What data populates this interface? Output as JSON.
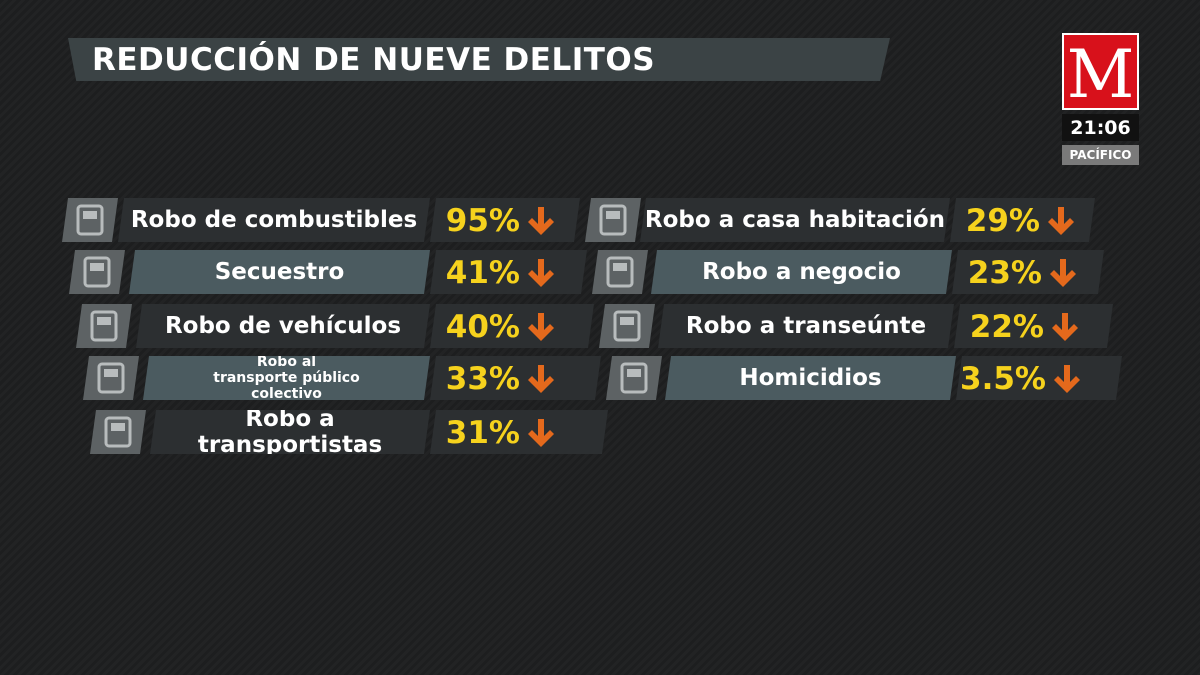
{
  "header": {
    "title": "REDUCCIÓN DE NUEVE DELITOS"
  },
  "logo": {
    "letter": "M",
    "time": "21:06",
    "zone": "PACÍFICO"
  },
  "items": [
    {
      "label": "Robo de combustibles",
      "value": "95%"
    },
    {
      "label": "Secuestro",
      "value": "41%"
    },
    {
      "label": "Robo de vehículos",
      "value": "40%"
    },
    {
      "label": "Robo al transporte público colectivo",
      "value": "33%"
    },
    {
      "label": "Robo a transportistas",
      "value": "31%"
    },
    {
      "label": "Robo a casa habitación",
      "value": "29%"
    },
    {
      "label": "Robo a negocio",
      "value": "23%"
    },
    {
      "label": "Robo a transeúnte",
      "value": "22%"
    },
    {
      "label": "Homicidios",
      "value": "3.5%"
    }
  ]
}
